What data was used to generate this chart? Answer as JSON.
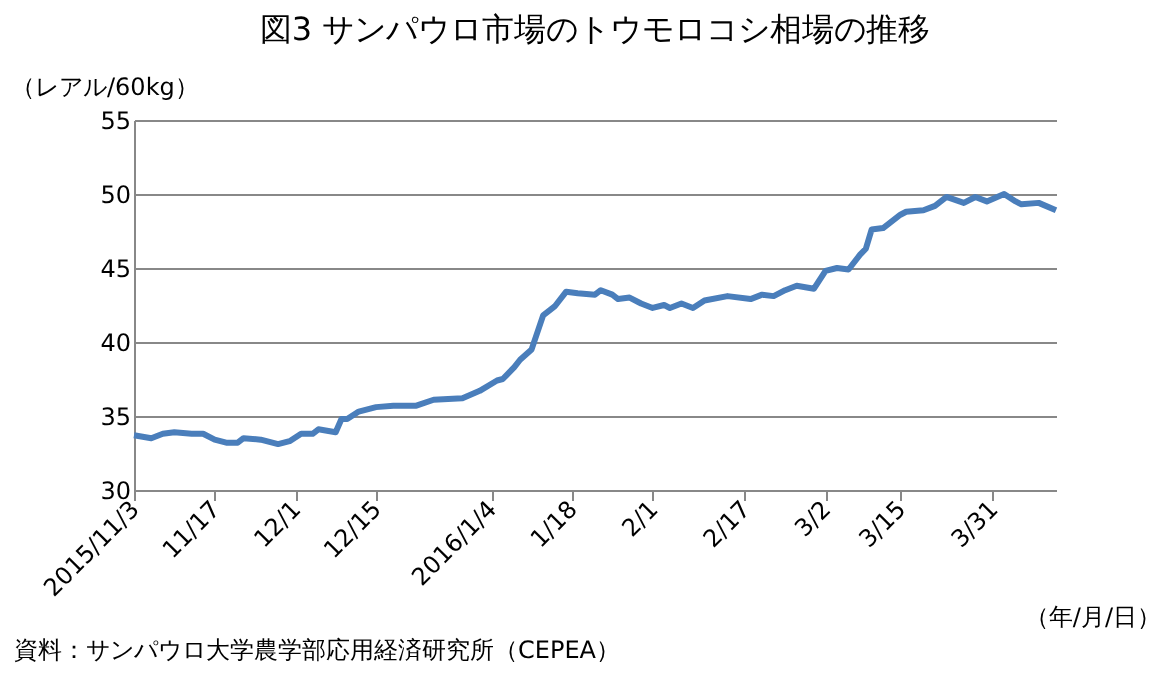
{
  "chart_data": {
    "type": "line",
    "title": "図3  サンパウロ市場のトウモロコシ相場の推移",
    "ylabel": "（レアル/60kg）",
    "xlabel": "（年/月/日）",
    "annotations": [
      "資料：サンパウロ大学農学部応用経済研究所（CEPEA）"
    ],
    "x": [
      "2015-11-03",
      "2015-11-06",
      "2015-11-08",
      "2015-11-10",
      "2015-11-13",
      "2015-11-15",
      "2015-11-17",
      "2015-11-19",
      "2015-11-21",
      "2015-11-22",
      "2015-11-25",
      "2015-11-28",
      "2015-11-30",
      "2015-12-02",
      "2015-12-04",
      "2015-12-05",
      "2015-12-08",
      "2015-12-09",
      "2015-12-10",
      "2015-12-12",
      "2015-12-15",
      "2015-12-18",
      "2015-12-22",
      "2015-12-25",
      "2015-12-30",
      "2016-01-02",
      "2016-01-05",
      "2016-01-06",
      "2016-01-08",
      "2016-01-09",
      "2016-01-11",
      "2016-01-13",
      "2016-01-15",
      "2016-01-17",
      "2016-01-19",
      "2016-01-22",
      "2016-01-23",
      "2016-01-25",
      "2016-01-26",
      "2016-01-28",
      "2016-01-30",
      "2016-02-01",
      "2016-02-03",
      "2016-02-04",
      "2016-02-06",
      "2016-02-08",
      "2016-02-10",
      "2016-02-14",
      "2016-02-18",
      "2016-02-20",
      "2016-02-22",
      "2016-02-24",
      "2016-02-26",
      "2016-02-29",
      "2016-03-02",
      "2016-03-04",
      "2016-03-06",
      "2016-03-08",
      "2016-03-09",
      "2016-03-10",
      "2016-03-12",
      "2016-03-15",
      "2016-03-16",
      "2016-03-19",
      "2016-03-21",
      "2016-03-23",
      "2016-03-26",
      "2016-03-28",
      "2016-03-30",
      "2016-04-02",
      "2016-04-04",
      "2016-04-05",
      "2016-04-08",
      "2016-04-11"
    ],
    "series": [
      {
        "color": "#4a7ebb",
        "values": [
          33.7,
          33.5,
          33.8,
          33.9,
          33.8,
          33.8,
          33.4,
          33.2,
          33.2,
          33.5,
          33.4,
          33.1,
          33.3,
          33.8,
          33.8,
          34.1,
          33.9,
          34.8,
          34.8,
          35.3,
          35.6,
          35.7,
          35.7,
          36.1,
          36.2,
          36.7,
          37.4,
          37.5,
          38.3,
          38.8,
          39.5,
          41.8,
          42.4,
          43.4,
          43.3,
          43.2,
          43.5,
          43.2,
          42.9,
          43.0,
          42.6,
          42.3,
          42.5,
          42.3,
          42.6,
          42.3,
          42.8,
          43.1,
          42.9,
          43.2,
          43.1,
          43.5,
          43.8,
          43.6,
          44.8,
          45.0,
          44.9,
          45.9,
          46.3,
          47.6,
          47.7,
          48.6,
          48.8,
          48.9,
          49.2,
          49.8,
          49.4,
          49.8,
          49.5,
          50.0,
          49.5,
          49.3,
          49.4,
          48.9
        ]
      }
    ],
    "xlim": [
      "2015-11-03",
      "2016-04-11"
    ],
    "xticks": [
      {
        "value": "2015-11-03",
        "label": "2015/11/3"
      },
      {
        "value": "2015-11-17",
        "label": "11/17"
      },
      {
        "value": "2015-12-01",
        "label": "12/1"
      },
      {
        "value": "2015-12-15",
        "label": "12/15"
      },
      {
        "value": "2016-01-04",
        "label": "2016/1/4"
      },
      {
        "value": "2016-01-18",
        "label": "1/18"
      },
      {
        "value": "2016-02-01",
        "label": "2/1"
      },
      {
        "value": "2016-02-17",
        "label": "2/17"
      },
      {
        "value": "2016-03-02",
        "label": "3/2"
      },
      {
        "value": "2016-03-15",
        "label": "3/15"
      },
      {
        "value": "2016-03-31",
        "label": "3/31"
      }
    ],
    "ylim": [
      30,
      55
    ],
    "yticks": [
      30,
      35,
      40,
      45,
      50,
      55
    ],
    "grid": "y",
    "marker": "none",
    "line_style": "solid"
  }
}
